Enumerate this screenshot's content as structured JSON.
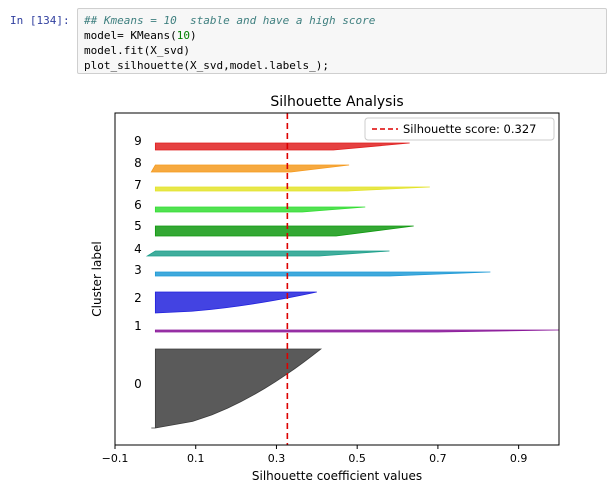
{
  "cell": {
    "prompt": "In [134]:",
    "comment": "## Kmeans = 10  stable and have a high score",
    "line2_pre": "model= KMeans(",
    "line2_num": "10",
    "line2_post": ")",
    "line3": "model.fit(X_svd)",
    "line4": "plot_silhouette(X_svd,model.labels_);"
  },
  "chart_data": {
    "type": "area",
    "title": "Silhouette Analysis",
    "xlabel": "Silhouette coefficient values",
    "ylabel": "Cluster label",
    "xlim": [
      -0.1,
      1.0
    ],
    "xticks": [
      "−0.1",
      "0.1",
      "0.3",
      "0.5",
      "0.7",
      "0.9"
    ],
    "xtick_values": [
      -0.1,
      0.1,
      0.3,
      0.5,
      0.7,
      0.9
    ],
    "silhouette_score": 0.327,
    "legend": {
      "label": "Silhouette score: 0.327",
      "placement": "top-right"
    },
    "grid": false,
    "clusters": [
      {
        "label": "0",
        "color": "#3d3d3d",
        "max": 0.41,
        "min": -0.01
      },
      {
        "label": "1",
        "color": "#8b1a9a",
        "max": 1.0,
        "min": 0.0
      },
      {
        "label": "2",
        "color": "#2222dd",
        "max": 0.4,
        "min": 0.0
      },
      {
        "label": "3",
        "color": "#1f9ad6",
        "max": 0.83,
        "min": 0.0
      },
      {
        "label": "4",
        "color": "#1fa08c",
        "max": 0.58,
        "min": -0.02
      },
      {
        "label": "5",
        "color": "#119911",
        "max": 0.64,
        "min": 0.0
      },
      {
        "label": "6",
        "color": "#33dd33",
        "max": 0.52,
        "min": 0.0
      },
      {
        "label": "7",
        "color": "#e3e32a",
        "max": 0.68,
        "min": 0.0
      },
      {
        "label": "8",
        "color": "#f59a1e",
        "max": 0.48,
        "min": -0.01
      },
      {
        "label": "9",
        "color": "#e02020",
        "max": 0.63,
        "min": 0.0
      }
    ]
  }
}
